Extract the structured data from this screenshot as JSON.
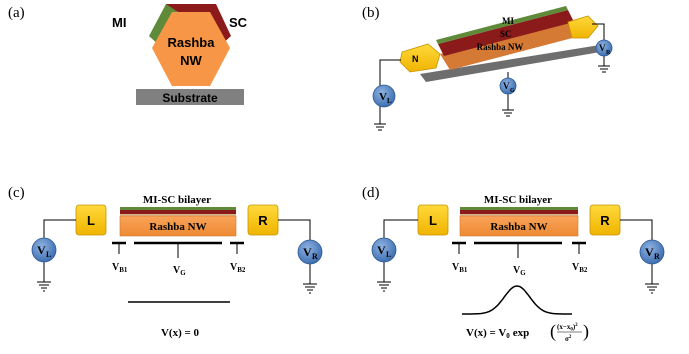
{
  "panels": {
    "a": {
      "label": "(a)",
      "mi": "MI",
      "sc": "SC",
      "nw_line1": "Rashba",
      "nw_line2": "NW",
      "substrate": "Substrate"
    },
    "b": {
      "label": "(b)",
      "mi": "MI",
      "sc": "SC",
      "nw": "Rashba NW",
      "lead_left": "N",
      "vl": "V",
      "vl_sub": "L",
      "vg": "V",
      "vg_sub": "G",
      "vr": "V",
      "vr_sub": "R"
    },
    "c": {
      "label": "(c)",
      "bilayer": "MI-SC bilayer",
      "nw": "Rashba NW",
      "lead_left": "L",
      "lead_right": "R",
      "vl": "V",
      "vl_sub": "L",
      "vr": "V",
      "vr_sub": "R",
      "vb1": "V",
      "vb1_sub": "B1",
      "vg": "V",
      "vg_sub": "G",
      "vb2": "V",
      "vb2_sub": "B2",
      "potential": "V(x) = 0"
    },
    "d": {
      "label": "(d)",
      "bilayer": "MI-SC bilayer",
      "nw": "Rashba NW",
      "lead_left": "L",
      "lead_right": "R",
      "vl": "V",
      "vl_sub": "L",
      "vr": "V",
      "vr_sub": "R",
      "vb1": "V",
      "vb1_sub": "B1",
      "vg": "V",
      "vg_sub": "G",
      "vb2": "V",
      "vb2_sub": "B2",
      "potential_lhs": "V(x) = V",
      "potential_sub0": "0",
      "potential_exp": "exp",
      "potential_num": "(x−x",
      "potential_num_sub": "0",
      "potential_num_tail": ")",
      "potential_num_pow": "2",
      "potential_den": "σ",
      "potential_den_pow": "2"
    }
  },
  "colors": {
    "nw_orange": "#f79646",
    "nw_dark": "#d9732a",
    "sc_red": "#8b1a1a",
    "mi_green": "#5e8a3a",
    "lead_yellow": "#f5c400",
    "probe_blue": "#4f81bd",
    "substrate": "#7f7f7f"
  },
  "icons": [
    "ground-icon",
    "voltage-probe-icon"
  ]
}
